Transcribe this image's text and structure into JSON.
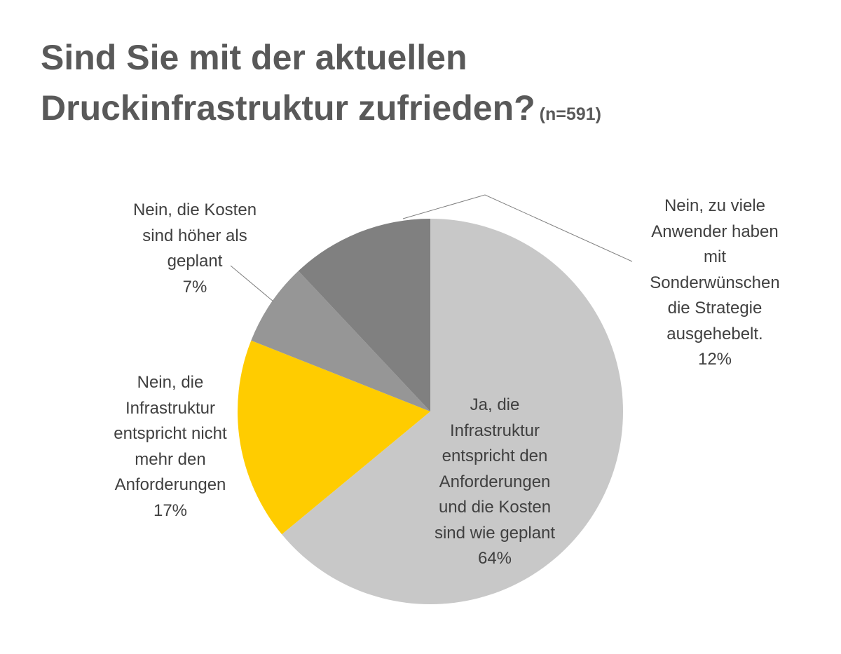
{
  "title": {
    "line1": "Sind Sie mit der aktuellen",
    "line2": "Druckinfrastruktur zufrieden?",
    "sample": "(n=591)"
  },
  "colors": {
    "title": "#595959",
    "label": "#404040",
    "leader_line": "#7f7f7f"
  },
  "chart_data": {
    "type": "pie",
    "start_angle_deg": 0,
    "direction": "clockwise",
    "title": "Sind Sie mit der aktuellen Druckinfrastruktur zufrieden? (n=591)",
    "slices": [
      {
        "label": "Ja, die Infrastruktur entspricht den Anforderungen und die Kosten sind wie geplant",
        "label_lines": [
          "Ja, die",
          "Infrastruktur",
          "entspricht den",
          "Anforderungen",
          "und die Kosten",
          "sind wie geplant"
        ],
        "pct_text": "64%",
        "value": 64,
        "color": "#c8c8c8"
      },
      {
        "label": "Nein, die Infrastruktur entspricht nicht mehr den Anforderungen",
        "label_lines": [
          "Nein, die",
          "Infrastruktur",
          "entspricht nicht",
          "mehr den",
          "Anforderungen"
        ],
        "pct_text": "17%",
        "value": 17,
        "color": "#ffcc00"
      },
      {
        "label": "Nein, die Kosten sind höher als geplant",
        "label_lines": [
          "Nein, die Kosten",
          "sind höher als",
          "geplant"
        ],
        "pct_text": "7%",
        "value": 7,
        "color": "#969696"
      },
      {
        "label": "Nein, zu viele Anwender haben mit Sonderwünschen die Strategie ausgehebelt.",
        "label_lines": [
          "Nein, zu viele",
          "Anwender haben",
          "mit",
          "Sonderwünschen",
          "die Strategie",
          "ausgehebelt."
        ],
        "pct_text": "12%",
        "value": 12,
        "color": "#808080"
      }
    ]
  }
}
